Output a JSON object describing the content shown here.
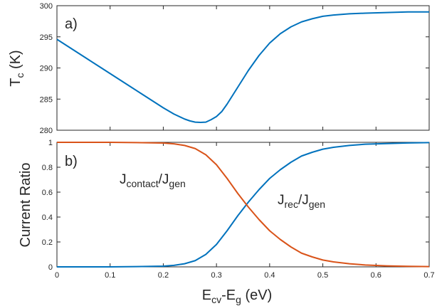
{
  "chart_data": [
    {
      "type": "line",
      "panel_label": "a)",
      "ylabel_main": "T",
      "ylabel_sub": "c",
      "ylabel_tail": " (K)",
      "xlim": [
        0,
        0.7
      ],
      "ylim": [
        280,
        300
      ],
      "xticks": [
        0,
        0.1,
        0.2,
        0.3,
        0.4,
        0.5,
        0.6,
        0.7
      ],
      "yticks": [
        280,
        285,
        290,
        295,
        300
      ],
      "grid": false,
      "series": [
        {
          "color": "#0072bd",
          "x": [
            0,
            0.02,
            0.04,
            0.06,
            0.08,
            0.1,
            0.12,
            0.14,
            0.16,
            0.18,
            0.2,
            0.22,
            0.24,
            0.25,
            0.26,
            0.27,
            0.28,
            0.29,
            0.3,
            0.31,
            0.32,
            0.34,
            0.36,
            0.38,
            0.4,
            0.42,
            0.44,
            0.46,
            0.48,
            0.5,
            0.52,
            0.55,
            0.58,
            0.62,
            0.66,
            0.7
          ],
          "y": [
            294.6,
            293.5,
            292.4,
            291.3,
            290.2,
            289.1,
            288.0,
            286.9,
            285.8,
            284.7,
            283.6,
            282.6,
            281.8,
            281.5,
            281.3,
            281.25,
            281.3,
            281.7,
            282.2,
            283.0,
            284.2,
            286.9,
            289.6,
            292.0,
            294.0,
            295.5,
            296.6,
            297.4,
            297.9,
            298.3,
            298.5,
            298.7,
            298.8,
            298.9,
            299.0,
            299.0
          ]
        }
      ]
    },
    {
      "type": "line",
      "panel_label": "b)",
      "ylabel": "Current Ratio",
      "xlabel_parts": [
        {
          "text": "E",
          "sub": false
        },
        {
          "text": "cv",
          "sub": true
        },
        {
          "text": "-E",
          "sub": false
        },
        {
          "text": "g",
          "sub": true
        },
        {
          "text": " (eV)",
          "sub": false
        }
      ],
      "xlim": [
        0,
        0.7
      ],
      "ylim": [
        0,
        1
      ],
      "xticks": [
        0,
        0.1,
        0.2,
        0.3,
        0.4,
        0.5,
        0.6,
        0.7
      ],
      "yticks": [
        0,
        0.2,
        0.4,
        0.6,
        0.8,
        1
      ],
      "grid": false,
      "annotations": [
        {
          "id": "contact",
          "main": "J",
          "sub": "contact",
          "sep": "/J",
          "sub2": "gen"
        },
        {
          "id": "rec",
          "main": "J",
          "sub": "rec",
          "sep": "/J",
          "sub2": "gen"
        }
      ],
      "series": [
        {
          "color": "#0072bd",
          "x": [
            0,
            0.05,
            0.1,
            0.15,
            0.2,
            0.22,
            0.24,
            0.26,
            0.28,
            0.3,
            0.32,
            0.34,
            0.36,
            0.38,
            0.4,
            0.42,
            0.44,
            0.46,
            0.48,
            0.5,
            0.52,
            0.55,
            0.58,
            0.62,
            0.66,
            0.7
          ],
          "y": [
            0,
            0,
            0,
            0.002,
            0.006,
            0.012,
            0.025,
            0.05,
            0.1,
            0.18,
            0.29,
            0.41,
            0.52,
            0.62,
            0.71,
            0.78,
            0.84,
            0.89,
            0.92,
            0.945,
            0.96,
            0.975,
            0.985,
            0.99,
            0.995,
            0.998
          ]
        },
        {
          "color": "#d95319",
          "x": [
            0,
            0.05,
            0.1,
            0.15,
            0.2,
            0.22,
            0.24,
            0.26,
            0.28,
            0.3,
            0.32,
            0.34,
            0.36,
            0.38,
            0.4,
            0.42,
            0.44,
            0.46,
            0.48,
            0.5,
            0.52,
            0.55,
            0.58,
            0.62,
            0.66,
            0.7
          ],
          "y": [
            1,
            1,
            1,
            0.998,
            0.994,
            0.988,
            0.975,
            0.95,
            0.9,
            0.82,
            0.71,
            0.59,
            0.48,
            0.38,
            0.29,
            0.22,
            0.16,
            0.11,
            0.08,
            0.055,
            0.04,
            0.025,
            0.015,
            0.008,
            0.004,
            0.002
          ]
        }
      ]
    }
  ]
}
